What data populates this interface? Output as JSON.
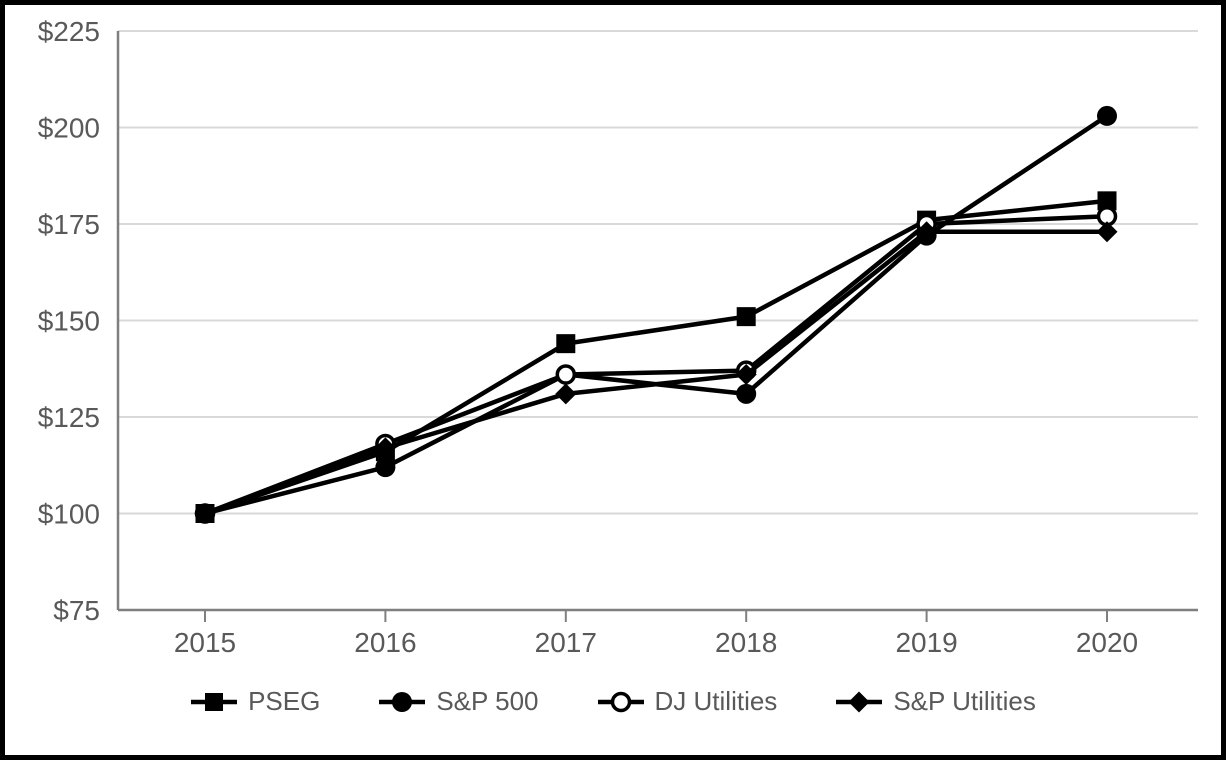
{
  "figure": {
    "background_color": "#ffffff",
    "border_color": "#000000"
  },
  "chart_data": {
    "type": "line",
    "title": "",
    "xlabel": "",
    "ylabel": "",
    "categories": [
      "2015",
      "2016",
      "2017",
      "2018",
      "2019",
      "2020"
    ],
    "ylim": [
      75,
      225
    ],
    "y_tick_step": 25,
    "y_ticks": [
      {
        "value": 225,
        "label": "$225"
      },
      {
        "value": 200,
        "label": "$200"
      },
      {
        "value": 175,
        "label": "$175"
      },
      {
        "value": 150,
        "label": "$150"
      },
      {
        "value": 125,
        "label": "$125"
      },
      {
        "value": 100,
        "label": "$100"
      },
      {
        "value": 75,
        "label": "$75"
      }
    ],
    "grid": "horizontal",
    "legend_position": "bottom",
    "series": [
      {
        "name": "PSEG",
        "marker": "square-filled",
        "color": "#000000",
        "values": [
          100,
          116,
          144,
          151,
          176,
          181
        ]
      },
      {
        "name": "S&P 500",
        "marker": "circle-filled",
        "color": "#000000",
        "values": [
          100,
          112,
          136,
          131,
          172,
          203
        ]
      },
      {
        "name": "DJ Utilities",
        "marker": "circle-open",
        "color": "#000000",
        "values": [
          100,
          118,
          136,
          137,
          175,
          177
        ]
      },
      {
        "name": "S&P Utilities",
        "marker": "diamond-filled",
        "color": "#000000",
        "values": [
          100,
          117,
          131,
          136,
          173,
          173
        ]
      }
    ],
    "colors": {
      "series": "#000000",
      "axis_line": "#7f7f7f",
      "gridline": "#d9d9d9",
      "tick_label": "#595959",
      "open_marker_fill": "#ffffff"
    }
  }
}
